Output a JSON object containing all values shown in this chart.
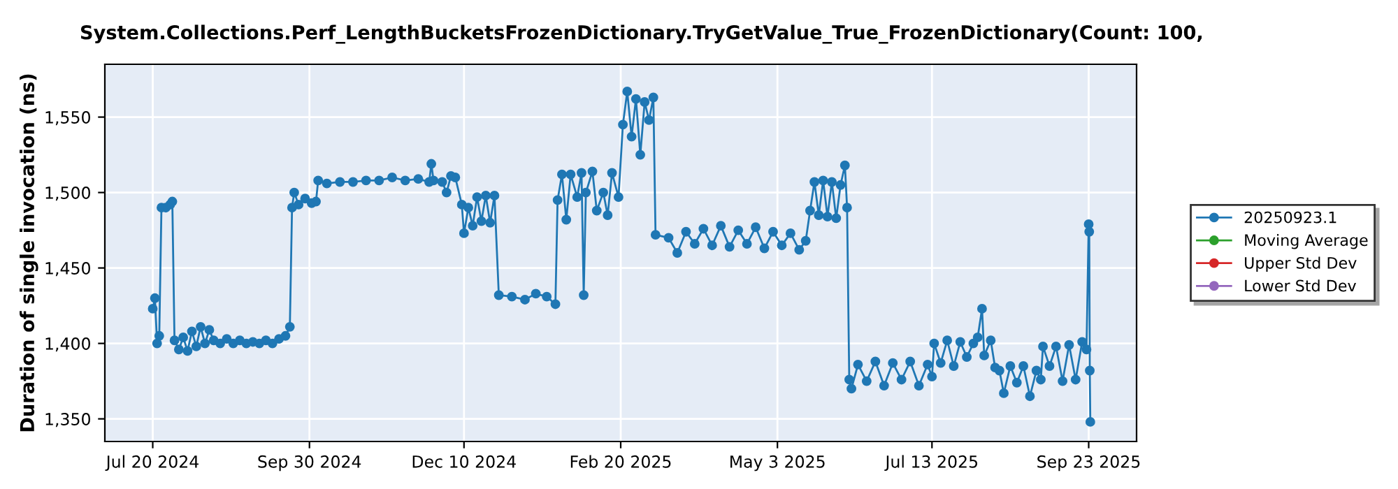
{
  "chart_data": {
    "type": "line",
    "title": "System.Collections.Perf_LengthBucketsFrozenDictionary.TryGetValue_True_FrozenDictionary(Count: 100,",
    "ylabel": "Duration of single invocation (ns)",
    "xlim": [
      "2024-06-28",
      "2025-10-15"
    ],
    "xticks": [
      {
        "value": "2024-07-20",
        "label": "Jul 20 2024"
      },
      {
        "value": "2024-09-30",
        "label": "Sep 30 2024"
      },
      {
        "value": "2024-12-10",
        "label": "Dec 10 2024"
      },
      {
        "value": "2025-02-20",
        "label": "Feb 20 2025"
      },
      {
        "value": "2025-05-03",
        "label": "May 3 2025"
      },
      {
        "value": "2025-07-13",
        "label": "Jul 13 2025"
      },
      {
        "value": "2025-09-23",
        "label": "Sep 23 2025"
      }
    ],
    "ylim": [
      1335,
      1585
    ],
    "yticks": [
      {
        "value": 1350,
        "label": "1,350"
      },
      {
        "value": 1400,
        "label": "1,400"
      },
      {
        "value": 1450,
        "label": "1,450"
      },
      {
        "value": 1500,
        "label": "1,500"
      },
      {
        "value": 1550,
        "label": "1,550"
      }
    ],
    "grid": true,
    "legend": "right",
    "marker": "circle",
    "line_style": "solid",
    "series": [
      {
        "name": "20250923.1",
        "color": "#1f77b4",
        "x": [
          "2024-07-20",
          "2024-07-21",
          "2024-07-22",
          "2024-07-23",
          "2024-07-24",
          "2024-07-26",
          "2024-07-28",
          "2024-07-29",
          "2024-07-30",
          "2024-08-01",
          "2024-08-03",
          "2024-08-05",
          "2024-08-07",
          "2024-08-09",
          "2024-08-11",
          "2024-08-13",
          "2024-08-15",
          "2024-08-17",
          "2024-08-20",
          "2024-08-23",
          "2024-08-26",
          "2024-08-29",
          "2024-09-01",
          "2024-09-04",
          "2024-09-07",
          "2024-09-10",
          "2024-09-13",
          "2024-09-16",
          "2024-09-19",
          "2024-09-21",
          "2024-09-22",
          "2024-09-23",
          "2024-09-25",
          "2024-09-28",
          "2024-10-01",
          "2024-10-03",
          "2024-10-04",
          "2024-10-08",
          "2024-10-14",
          "2024-10-20",
          "2024-10-26",
          "2024-11-01",
          "2024-11-07",
          "2024-11-13",
          "2024-11-19",
          "2024-11-24",
          "2024-11-25",
          "2024-11-26",
          "2024-11-30",
          "2024-12-02",
          "2024-12-04",
          "2024-12-06",
          "2024-12-09",
          "2024-12-10",
          "2024-12-12",
          "2024-12-14",
          "2024-12-16",
          "2024-12-18",
          "2024-12-20",
          "2024-12-22",
          "2024-12-24",
          "2024-12-26",
          "2025-01-01",
          "2025-01-07",
          "2025-01-12",
          "2025-01-17",
          "2025-01-21",
          "2025-01-22",
          "2025-01-24",
          "2025-01-26",
          "2025-01-28",
          "2025-01-31",
          "2025-02-02",
          "2025-02-03",
          "2025-02-04",
          "2025-02-07",
          "2025-02-09",
          "2025-02-12",
          "2025-02-14",
          "2025-02-16",
          "2025-02-19",
          "2025-02-21",
          "2025-02-23",
          "2025-02-25",
          "2025-02-27",
          "2025-03-01",
          "2025-03-03",
          "2025-03-05",
          "2025-03-07",
          "2025-03-08",
          "2025-03-14",
          "2025-03-18",
          "2025-03-22",
          "2025-03-26",
          "2025-03-30",
          "2025-04-03",
          "2025-04-07",
          "2025-04-11",
          "2025-04-15",
          "2025-04-19",
          "2025-04-23",
          "2025-04-27",
          "2025-05-01",
          "2025-05-05",
          "2025-05-09",
          "2025-05-13",
          "2025-05-16",
          "2025-05-18",
          "2025-05-20",
          "2025-05-22",
          "2025-05-24",
          "2025-05-26",
          "2025-05-28",
          "2025-05-30",
          "2025-06-01",
          "2025-06-03",
          "2025-06-04",
          "2025-06-05",
          "2025-06-06",
          "2025-06-09",
          "2025-06-13",
          "2025-06-17",
          "2025-06-21",
          "2025-06-25",
          "2025-06-29",
          "2025-07-03",
          "2025-07-07",
          "2025-07-11",
          "2025-07-13",
          "2025-07-14",
          "2025-07-17",
          "2025-07-20",
          "2025-07-23",
          "2025-07-26",
          "2025-07-29",
          "2025-08-01",
          "2025-08-03",
          "2025-08-05",
          "2025-08-06",
          "2025-08-09",
          "2025-08-11",
          "2025-08-13",
          "2025-08-15",
          "2025-08-18",
          "2025-08-21",
          "2025-08-24",
          "2025-08-27",
          "2025-08-30",
          "2025-09-01",
          "2025-09-02",
          "2025-09-05",
          "2025-09-08",
          "2025-09-11",
          "2025-09-14",
          "2025-09-17",
          "2025-09-20",
          "2025-09-22",
          "2025-09-23T00:00",
          "2025-09-23T06:00",
          "2025-09-23T12:00",
          "2025-09-23T18:00"
        ],
        "values": [
          1423,
          1430,
          1400,
          1405,
          1490,
          1490,
          1492,
          1494,
          1402,
          1396,
          1404,
          1395,
          1408,
          1398,
          1411,
          1400,
          1409,
          1402,
          1400,
          1403,
          1400,
          1402,
          1400,
          1401,
          1400,
          1402,
          1400,
          1403,
          1405,
          1411,
          1490,
          1500,
          1492,
          1496,
          1493,
          1494,
          1508,
          1506,
          1507,
          1507,
          1508,
          1508,
          1510,
          1508,
          1509,
          1507,
          1519,
          1508,
          1507,
          1500,
          1511,
          1510,
          1492,
          1473,
          1490,
          1478,
          1497,
          1481,
          1498,
          1480,
          1498,
          1432,
          1431,
          1429,
          1433,
          1431,
          1426,
          1495,
          1512,
          1482,
          1512,
          1497,
          1513,
          1432,
          1500,
          1514,
          1488,
          1500,
          1485,
          1513,
          1497,
          1545,
          1567,
          1537,
          1562,
          1525,
          1560,
          1548,
          1563,
          1472,
          1470,
          1460,
          1474,
          1466,
          1476,
          1465,
          1478,
          1464,
          1475,
          1466,
          1477,
          1463,
          1474,
          1465,
          1473,
          1462,
          1468,
          1488,
          1507,
          1485,
          1508,
          1484,
          1507,
          1483,
          1505,
          1518,
          1490,
          1376,
          1370,
          1386,
          1375,
          1388,
          1372,
          1387,
          1376,
          1388,
          1372,
          1386,
          1378,
          1400,
          1387,
          1402,
          1385,
          1401,
          1391,
          1400,
          1404,
          1423,
          1392,
          1402,
          1384,
          1382,
          1367,
          1385,
          1374,
          1385,
          1365,
          1382,
          1376,
          1398,
          1385,
          1398,
          1375,
          1399,
          1376,
          1401,
          1396,
          1479,
          1474,
          1382,
          1348
        ]
      },
      {
        "name": "Moving Average",
        "color": "#2ca02c"
      },
      {
        "name": "Upper Std Dev",
        "color": "#d62728"
      },
      {
        "name": "Lower Std Dev",
        "color": "#9467bd"
      }
    ]
  }
}
